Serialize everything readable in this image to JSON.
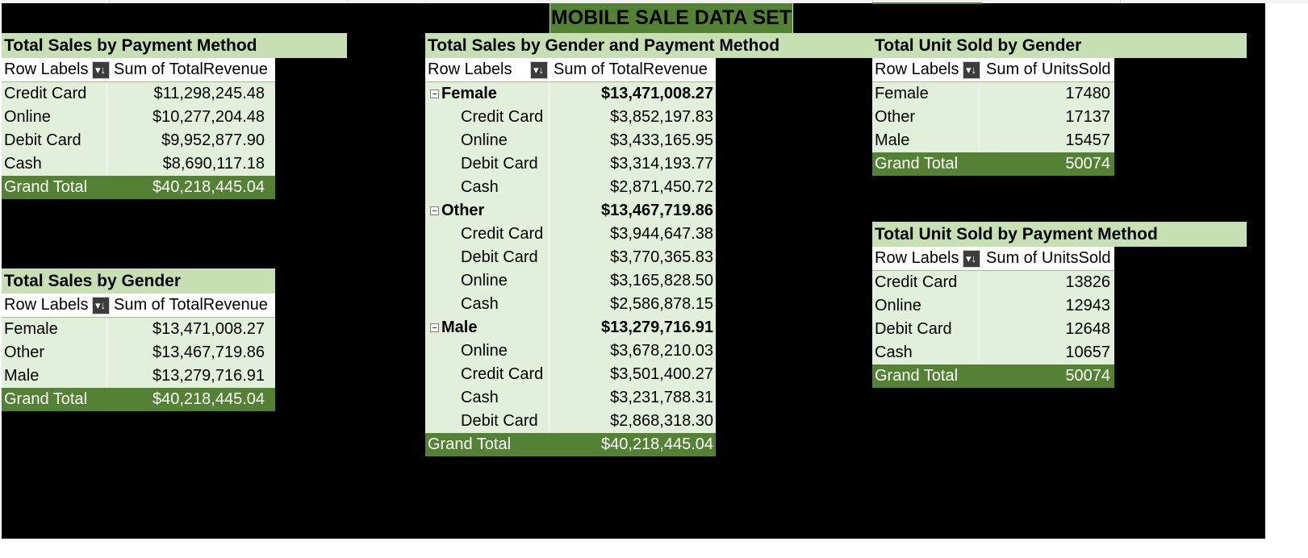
{
  "title": "MOBILE SALE DATA SET",
  "colors": {
    "accent_dark": "#548235",
    "accent_light": "#c6e0b4",
    "row_fill": "#e2efda",
    "background": "#000000"
  },
  "pivots": {
    "payment": {
      "title": "Total Sales by Payment Method",
      "row_labels": "Row Labels",
      "value_header": "Sum of TotalRevenue",
      "rows": [
        {
          "label": "Credit Card",
          "value": "$11,298,245.48"
        },
        {
          "label": "Online",
          "value": "$10,277,204.48"
        },
        {
          "label": "Debit Card",
          "value": "$9,952,877.90"
        },
        {
          "label": "Cash",
          "value": "$8,690,117.18"
        }
      ],
      "total": {
        "label": "Grand Total",
        "value": "$40,218,445.04"
      }
    },
    "gender": {
      "title": "Total Sales by Gender",
      "row_labels": "Row Labels",
      "value_header": "Sum of TotalRevenue",
      "rows": [
        {
          "label": "Female",
          "value": "$13,471,008.27"
        },
        {
          "label": "Other",
          "value": "$13,467,719.86"
        },
        {
          "label": "Male",
          "value": "$13,279,716.91"
        }
      ],
      "total": {
        "label": "Grand Total",
        "value": "$40,218,445.04"
      }
    },
    "gender_payment": {
      "title": "Total Sales by Gender and Payment Method",
      "row_labels": "Row Labels",
      "value_header": "Sum of TotalRevenue",
      "groups": [
        {
          "label": "Female",
          "value": "$13,471,008.27",
          "children": [
            {
              "label": "Credit Card",
              "value": "$3,852,197.83"
            },
            {
              "label": "Online",
              "value": "$3,433,165.95"
            },
            {
              "label": "Debit Card",
              "value": "$3,314,193.77"
            },
            {
              "label": "Cash",
              "value": "$2,871,450.72"
            }
          ]
        },
        {
          "label": "Other",
          "value": "$13,467,719.86",
          "children": [
            {
              "label": "Credit Card",
              "value": "$3,944,647.38"
            },
            {
              "label": "Debit Card",
              "value": "$3,770,365.83"
            },
            {
              "label": "Online",
              "value": "$3,165,828.50"
            },
            {
              "label": "Cash",
              "value": "$2,586,878.15"
            }
          ]
        },
        {
          "label": "Male",
          "value": "$13,279,716.91",
          "children": [
            {
              "label": "Online",
              "value": "$3,678,210.03"
            },
            {
              "label": "Credit Card",
              "value": "$3,501,400.27"
            },
            {
              "label": "Cash",
              "value": "$3,231,788.31"
            },
            {
              "label": "Debit Card",
              "value": "$2,868,318.30"
            }
          ]
        }
      ],
      "total": {
        "label": "Grand Total",
        "value": "$40,218,445.04"
      }
    },
    "units_gender": {
      "title": "Total Unit Sold by Gender",
      "row_labels": "Row Labels",
      "value_header": "Sum of UnitsSold",
      "rows": [
        {
          "label": "Female",
          "value": "17480"
        },
        {
          "label": "Other",
          "value": "17137"
        },
        {
          "label": "Male",
          "value": "15457"
        }
      ],
      "total": {
        "label": "Grand Total",
        "value": "50074"
      }
    },
    "units_payment": {
      "title": "Total Unit Sold by Payment Method",
      "row_labels": "Row Labels",
      "value_header": "Sum of UnitsSold",
      "rows": [
        {
          "label": "Credit Card",
          "value": "13826"
        },
        {
          "label": "Online",
          "value": "12943"
        },
        {
          "label": "Debit Card",
          "value": "12648"
        },
        {
          "label": "Cash",
          "value": "10657"
        }
      ],
      "total": {
        "label": "Grand Total",
        "value": "50074"
      }
    }
  }
}
